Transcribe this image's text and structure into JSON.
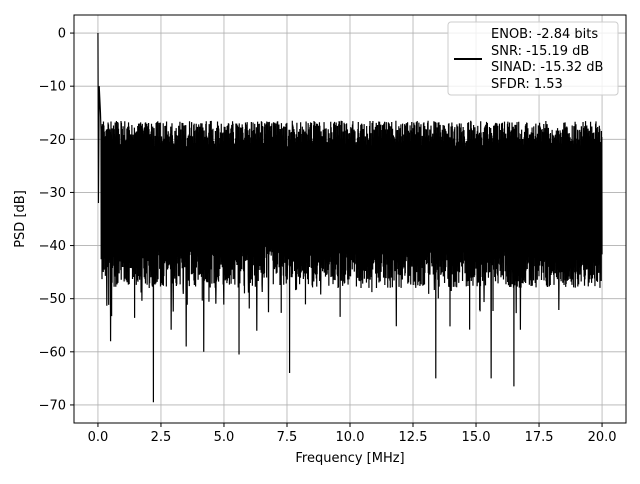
{
  "chart_data": {
    "type": "line",
    "xlabel": "Frequency [MHz]",
    "ylabel": "PSD [dB]",
    "xlim": [
      -0.95,
      20.95
    ],
    "ylim": [
      -73.4,
      3.4
    ],
    "xticks": [
      0.0,
      2.5,
      5.0,
      7.5,
      10.0,
      12.5,
      15.0,
      17.5,
      20.0
    ],
    "xtick_labels": [
      "0.0",
      "2.5",
      "5.0",
      "7.5",
      "10.0",
      "12.5",
      "15.0",
      "17.5",
      "20.0"
    ],
    "yticks": [
      0,
      -10,
      -20,
      -30,
      -40,
      -50,
      -60,
      -70
    ],
    "ytick_labels": [
      "0",
      "−10",
      "−20",
      "−30",
      "−40",
      "−50",
      "−60",
      "−70"
    ],
    "grid": true,
    "legend_position": "top-right",
    "legend": {
      "lines": [
        "ENOB: -2.84 bits",
        "SNR: -15.19 dB",
        "SINAD: -15.32 dB",
        "SFDR: 1.53"
      ]
    },
    "series": [
      {
        "color": "#000000",
        "noise_floor_upper_dB": -19,
        "noise_floor_lower_dB": -44,
        "peaks": [
          {
            "x": 0.0,
            "y": 0.0
          },
          {
            "x": 0.02,
            "y": -32
          },
          {
            "x": 0.05,
            "y": -10
          },
          {
            "x": 0.1,
            "y": -15
          }
        ],
        "deep_notches": [
          {
            "x": 0.5,
            "y": -58
          },
          {
            "x": 2.2,
            "y": -69.5
          },
          {
            "x": 3.5,
            "y": -59
          },
          {
            "x": 4.2,
            "y": -60
          },
          {
            "x": 5.6,
            "y": -60.5
          },
          {
            "x": 7.6,
            "y": -64
          },
          {
            "x": 13.4,
            "y": -65
          },
          {
            "x": 15.6,
            "y": -65
          },
          {
            "x": 16.5,
            "y": -66.5
          }
        ]
      }
    ]
  }
}
